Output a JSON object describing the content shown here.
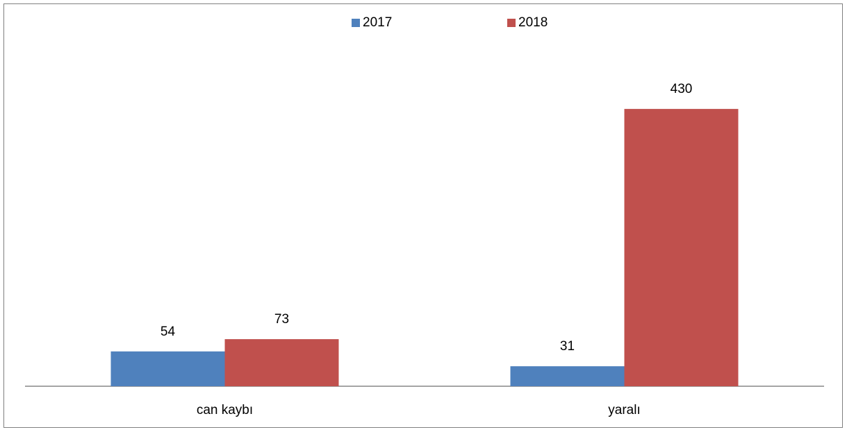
{
  "chart_data": {
    "type": "bar",
    "categories": [
      "can kaybı",
      "yaralı"
    ],
    "series": [
      {
        "name": "2017",
        "color": "#4f81bd",
        "values": [
          54,
          31
        ]
      },
      {
        "name": "2018",
        "color": "#c0504d",
        "values": [
          73,
          430
        ]
      }
    ],
    "ylim": [
      0,
      500
    ],
    "legend": "top"
  }
}
